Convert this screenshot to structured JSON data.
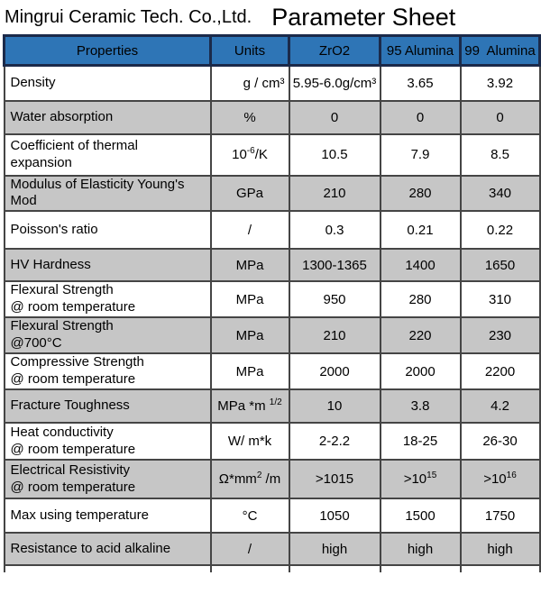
{
  "header": {
    "company": "Mingrui Ceramic Tech. Co.,Ltd.",
    "title": "Parameter Sheet"
  },
  "table": {
    "columns": [
      "Properties",
      "Units",
      "ZrO2",
      "95 Alumina",
      "99  Alumina"
    ],
    "rows": [
      {
        "property": "Density",
        "unit": "g / cm³",
        "unit_align": "right",
        "values": [
          "5.95-6.0g/cm³",
          "3.65",
          "3.92"
        ],
        "shaded": false
      },
      {
        "property": "Water absorption",
        "unit": "%",
        "values": [
          "0",
          "0",
          "0"
        ],
        "shaded": true
      },
      {
        "property": "Coefficient of thermal\nexpansion",
        "unit": "10^{-6}/K",
        "values": [
          "10.5",
          "7.9",
          "8.5"
        ],
        "shaded": false
      },
      {
        "property": "Modulus of Elasticity Young's\nMod",
        "unit": "GPa",
        "values": [
          "210",
          "280",
          "340"
        ],
        "shaded": true
      },
      {
        "property": "Poisson's ratio",
        "unit": "/",
        "values": [
          "0.3",
          "0.21",
          "0.22"
        ],
        "shaded": false
      },
      {
        "property": "HV Hardness",
        "unit": "MPa",
        "values": [
          "1300-1365",
          "1400",
          "1650"
        ],
        "shaded": true
      },
      {
        "property": "Flexural Strength\n@ room temperature",
        "unit": "MPa",
        "values": [
          "950",
          "280",
          "310"
        ],
        "shaded": false
      },
      {
        "property": "Flexural Strength\n@700°C",
        "unit": "MPa",
        "values": [
          "210",
          "220",
          "230"
        ],
        "shaded": true
      },
      {
        "property": "Compressive Strength\n@ room temperature",
        "unit": "MPa",
        "values": [
          "2000",
          "2000",
          "2200"
        ],
        "shaded": false
      },
      {
        "property": "Fracture Toughness",
        "unit": "MPa *m ^{1/2}",
        "values": [
          "10",
          "3.8",
          "4.2"
        ],
        "shaded": true
      },
      {
        "property": "Heat conductivity\n@ room temperature",
        "unit": "W/ m*k",
        "values": [
          "2-2.2",
          "18-25",
          "26-30"
        ],
        "shaded": false
      },
      {
        "property": "Electrical Resistivity\n@ room temperature",
        "unit": "Ω*mm^{2} /m",
        "values": [
          ">1015",
          ">10^{15}",
          ">10^{16}"
        ],
        "shaded": true
      },
      {
        "property": "Max using temperature",
        "unit": "°C",
        "values": [
          "1050",
          "1500",
          "1750"
        ],
        "shaded": false
      },
      {
        "property": "Resistance to acid alkaline",
        "unit": "/",
        "values": [
          "high",
          "high",
          "high"
        ],
        "shaded": true
      }
    ]
  },
  "colors": {
    "header_bg": "#2E75B6",
    "header_border": "#1b2a4a",
    "grid_border": "#454545",
    "shaded_bg": "#C6C6C6",
    "text_color": "#000000",
    "page_bg": "#ffffff"
  }
}
